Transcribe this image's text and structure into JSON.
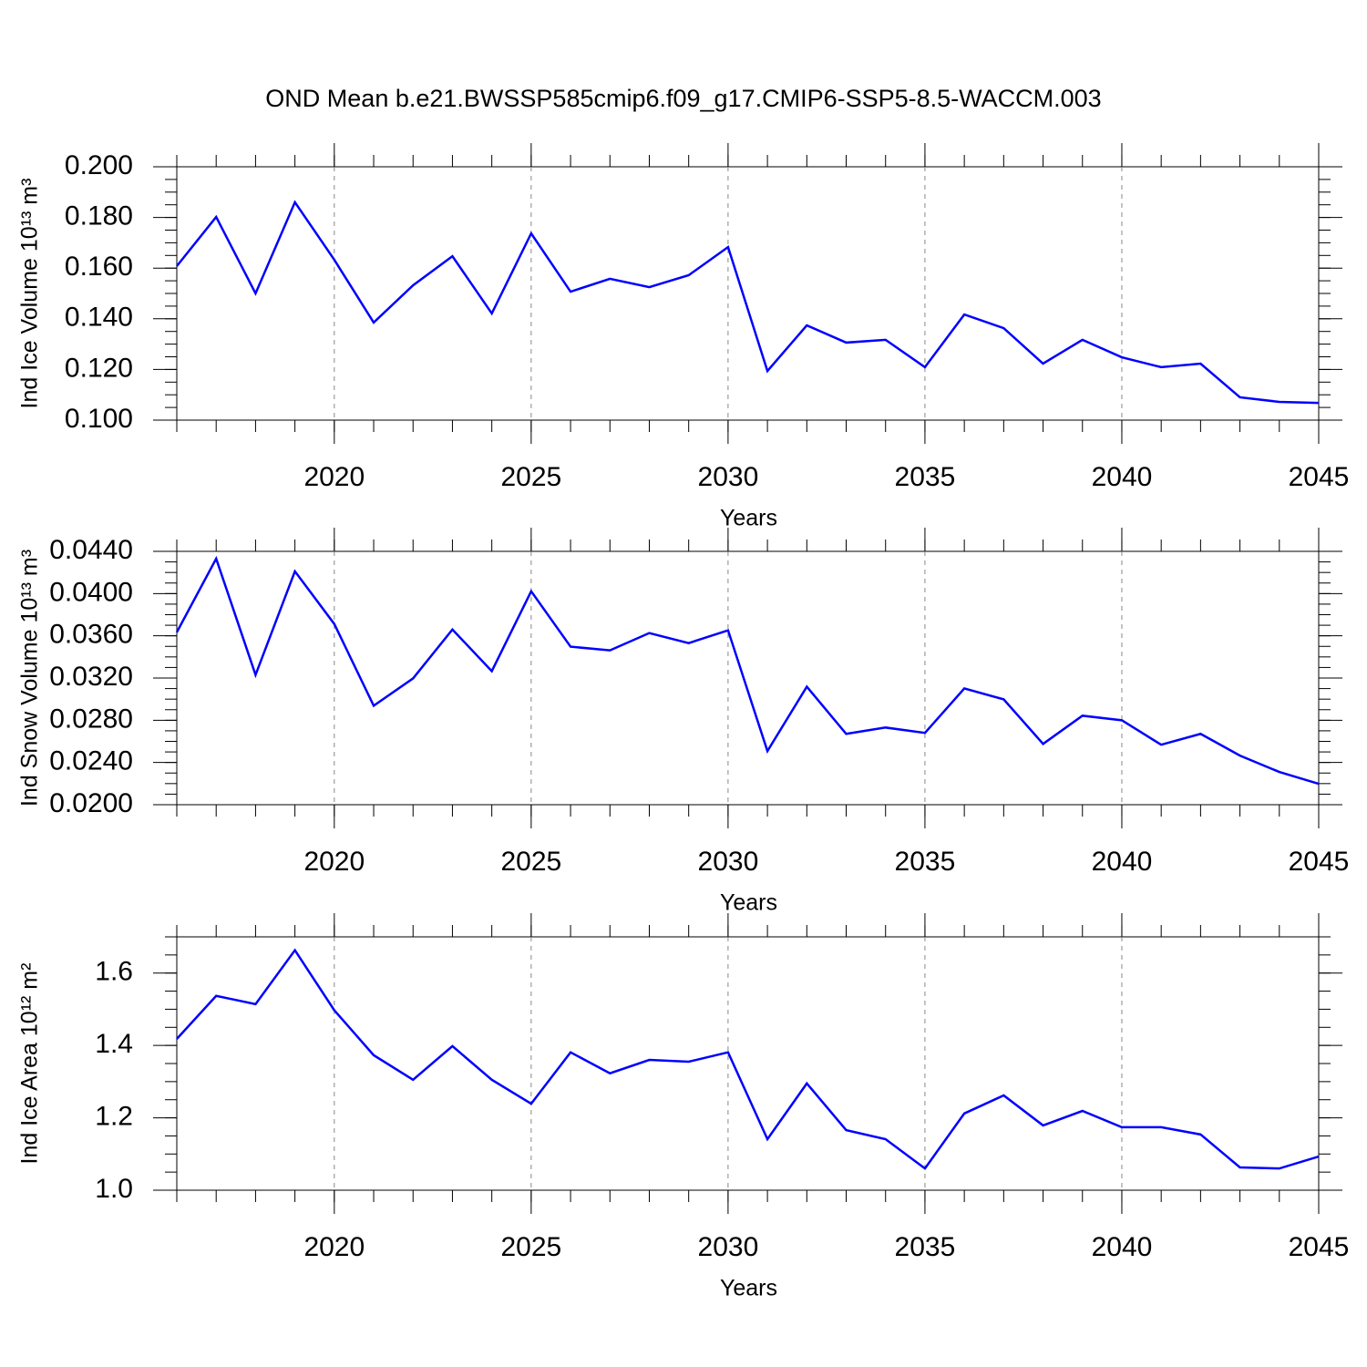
{
  "title": "OND Mean b.e21.BWSSP585cmip6.f09_g17.CMIP6-SSP5-8.5-WACCM.003",
  "chart_data": [
    {
      "type": "line",
      "ylabel": "Ind Ice Volume 10¹³ m³",
      "xlabel": "Years",
      "x": [
        2016,
        2017,
        2018,
        2019,
        2020,
        2021,
        2022,
        2023,
        2024,
        2025,
        2026,
        2027,
        2028,
        2029,
        2030,
        2031,
        2032,
        2033,
        2034,
        2035,
        2036,
        2037,
        2038,
        2039,
        2040,
        2041,
        2042,
        2043,
        2044,
        2045
      ],
      "values": [
        0.1608,
        0.1802,
        0.15,
        0.186,
        0.1633,
        0.1385,
        0.1532,
        0.1647,
        0.1421,
        0.1737,
        0.1507,
        0.1558,
        0.1525,
        0.1572,
        0.1683,
        0.1194,
        0.1374,
        0.1306,
        0.1317,
        0.1209,
        0.1417,
        0.1363,
        0.1223,
        0.1317,
        0.1248,
        0.1209,
        0.1223,
        0.109,
        0.1072,
        0.1068
      ],
      "color": "#0000ff",
      "xlim": [
        2016,
        2045
      ],
      "xticks": [
        2020,
        2025,
        2030,
        2035,
        2040,
        2045
      ],
      "ylim": [
        0.1,
        0.2
      ],
      "yticks": [
        {
          "value": 0.1,
          "label": "0.100"
        },
        {
          "value": 0.12,
          "label": "0.120"
        },
        {
          "value": 0.14,
          "label": "0.140"
        },
        {
          "value": 0.16,
          "label": "0.160"
        },
        {
          "value": 0.18,
          "label": "0.180"
        },
        {
          "value": 0.2,
          "label": "0.200"
        }
      ],
      "grid": "x"
    },
    {
      "type": "line",
      "ylabel": "Ind Snow Volume 10¹³ m³",
      "xlabel": "Years",
      "x": [
        2016,
        2017,
        2018,
        2019,
        2020,
        2021,
        2022,
        2023,
        2024,
        2025,
        2026,
        2027,
        2028,
        2029,
        2030,
        2031,
        2032,
        2033,
        2034,
        2035,
        2036,
        2037,
        2038,
        2039,
        2040,
        2041,
        2042,
        2043,
        2044,
        2045
      ],
      "values": [
        0.03634,
        0.04331,
        0.0323,
        0.04211,
        0.03712,
        0.02938,
        0.03196,
        0.0366,
        0.03265,
        0.04022,
        0.03497,
        0.03462,
        0.03626,
        0.03531,
        0.03652,
        0.02508,
        0.03118,
        0.02671,
        0.02731,
        0.0268,
        0.03101,
        0.02998,
        0.02576,
        0.02843,
        0.028,
        0.02568,
        0.02671,
        0.02465,
        0.0231,
        0.02198
      ],
      "color": "#0000ff",
      "xlim": [
        2016,
        2045
      ],
      "xticks": [
        2020,
        2025,
        2030,
        2035,
        2040,
        2045
      ],
      "ylim": [
        0.02,
        0.044
      ],
      "yticks": [
        {
          "value": 0.02,
          "label": "0.0200"
        },
        {
          "value": 0.024,
          "label": "0.0240"
        },
        {
          "value": 0.028,
          "label": "0.0280"
        },
        {
          "value": 0.032,
          "label": "0.0320"
        },
        {
          "value": 0.036,
          "label": "0.0360"
        },
        {
          "value": 0.04,
          "label": "0.0400"
        },
        {
          "value": 0.044,
          "label": "0.0440"
        }
      ],
      "grid": "x"
    },
    {
      "type": "line",
      "ylabel": "Ind Ice Area 10¹² m²",
      "xlabel": "Years",
      "x": [
        2016,
        2017,
        2018,
        2019,
        2020,
        2021,
        2022,
        2023,
        2024,
        2025,
        2026,
        2027,
        2028,
        2029,
        2030,
        2031,
        2032,
        2033,
        2034,
        2035,
        2036,
        2037,
        2038,
        2039,
        2040,
        2041,
        2042,
        2043,
        2044,
        2045
      ],
      "values": [
        1.418,
        1.537,
        1.514,
        1.663,
        1.497,
        1.373,
        1.305,
        1.398,
        1.305,
        1.239,
        1.381,
        1.323,
        1.36,
        1.355,
        1.381,
        1.141,
        1.295,
        1.166,
        1.141,
        1.06,
        1.212,
        1.262,
        1.179,
        1.219,
        1.174,
        1.174,
        1.154,
        1.063,
        1.06,
        1.093
      ],
      "color": "#0000ff",
      "xlim": [
        2016,
        2045
      ],
      "xticks": [
        2020,
        2025,
        2030,
        2035,
        2040,
        2045
      ],
      "ylim": [
        1.0,
        1.7
      ],
      "yticks": [
        {
          "value": 1.0,
          "label": "1.0"
        },
        1.2,
        1.4,
        1.6
      ],
      "grid": "x"
    }
  ]
}
